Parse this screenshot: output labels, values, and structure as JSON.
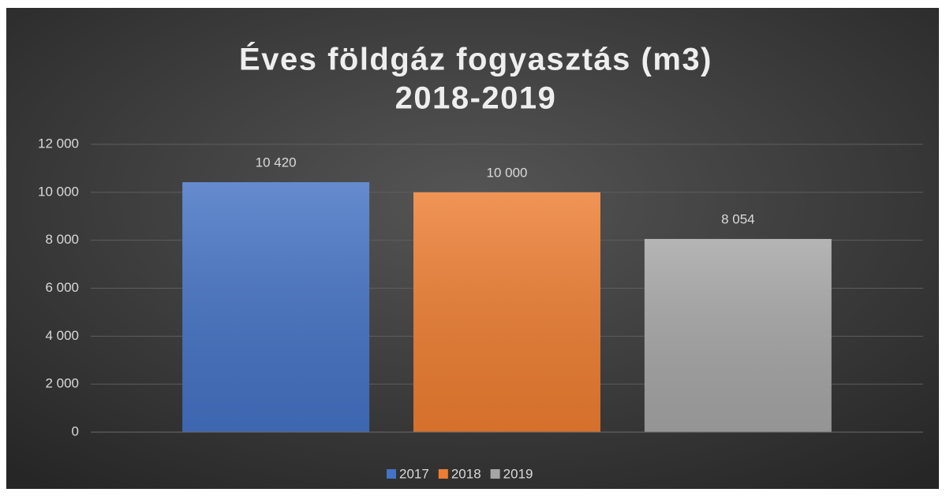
{
  "chart_data": {
    "type": "bar",
    "title": [
      "Éves földgáz fogyasztás (m3)",
      "2018-2019"
    ],
    "categories": [
      null
    ],
    "series": [
      {
        "name": "2017",
        "color": "#4472c4",
        "values": [
          10420
        ],
        "value_labels": [
          "10 420"
        ]
      },
      {
        "name": "2018",
        "color": "#ed7d31",
        "values": [
          10000
        ],
        "value_labels": [
          "10 000"
        ]
      },
      {
        "name": "2019",
        "color": "#a5a5a5",
        "values": [
          8054
        ],
        "value_labels": [
          "8 054"
        ]
      }
    ],
    "ylim": [
      0,
      12000
    ],
    "yticks": [
      0,
      {
        "value": 2000,
        "label": "2 000"
      },
      {
        "value": 4000,
        "label": "4 000"
      },
      {
        "value": 6000,
        "label": "6 000"
      },
      {
        "value": 8000,
        "label": "8 000"
      },
      {
        "value": 10000,
        "label": "10 000"
      },
      {
        "value": 12000,
        "label": "12 000"
      }
    ],
    "grid": true,
    "legend": "bottom"
  }
}
